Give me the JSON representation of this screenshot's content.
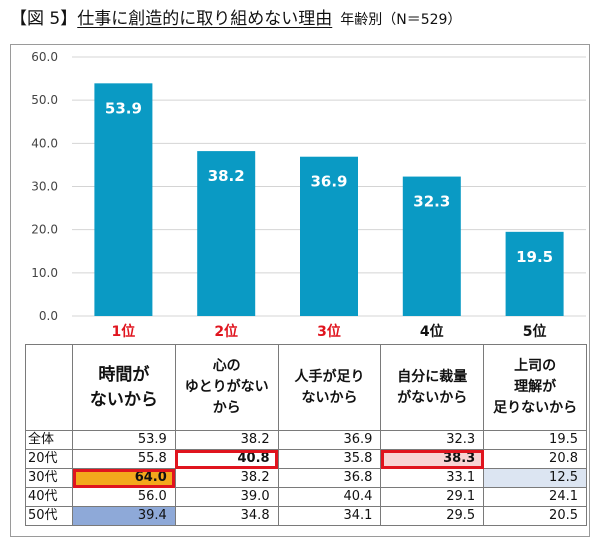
{
  "title": {
    "prefix": "【図 5】",
    "main": "仕事に創造的に取り組めない理由",
    "sub": "年齢別（N＝529）"
  },
  "colors": {
    "bar": "#0a9ac4",
    "red_label": "#e0141e",
    "highlight_border": "#e0141e",
    "orange": "#f3a81c",
    "blue": "#8ea9d8",
    "light_blue": "#dce5f2",
    "pink": "#f8d4d4"
  },
  "chart_data": {
    "type": "bar",
    "categories": [
      "1位",
      "2位",
      "3位",
      "4位",
      "5位"
    ],
    "category_colors": [
      "#e0141e",
      "#e0141e",
      "#e0141e",
      "#111111",
      "#111111"
    ],
    "values": [
      53.9,
      38.2,
      36.9,
      32.3,
      19.5
    ],
    "value_labels": [
      "53.9",
      "38.2",
      "36.9",
      "32.3",
      "19.5"
    ],
    "ylim": [
      0,
      60
    ],
    "yticks": [
      "0.0",
      "10.0",
      "20.0",
      "30.0",
      "40.0",
      "50.0",
      "60.0"
    ],
    "grid": true,
    "legend": "none"
  },
  "table": {
    "headers": [
      [
        "時間が",
        "ないから"
      ],
      [
        "心の",
        "ゆとりがない",
        "から"
      ],
      [
        "人手が足り",
        "ないから"
      ],
      [
        "自分に裁量",
        "がないから"
      ],
      [
        "上司の",
        "理解が",
        "足りないから"
      ]
    ],
    "rows": [
      {
        "label": "全体",
        "values": [
          "53.9",
          "38.2",
          "36.9",
          "32.3",
          "19.5"
        ]
      },
      {
        "label": "20代",
        "values": [
          "55.8",
          "40.8",
          "35.8",
          "38.3",
          "20.8"
        ]
      },
      {
        "label": "30代",
        "values": [
          "64.0",
          "38.2",
          "36.8",
          "33.1",
          "12.5"
        ]
      },
      {
        "label": "40代",
        "values": [
          "56.0",
          "39.0",
          "40.4",
          "29.1",
          "24.1"
        ]
      },
      {
        "label": "50代",
        "values": [
          "39.4",
          "34.8",
          "34.1",
          "29.5",
          "20.5"
        ]
      }
    ],
    "highlights": [
      {
        "row": 1,
        "col": 1,
        "fill": "none",
        "red_border": true
      },
      {
        "row": 1,
        "col": 3,
        "fill": "pink",
        "red_border": true
      },
      {
        "row": 2,
        "col": 0,
        "fill": "orange",
        "red_border": true
      },
      {
        "row": 2,
        "col": 4,
        "fill": "light_blue",
        "red_border": false
      },
      {
        "row": 4,
        "col": 0,
        "fill": "blue",
        "red_border": false
      }
    ]
  }
}
